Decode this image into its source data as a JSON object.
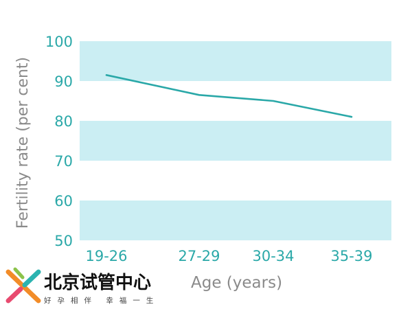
{
  "chart_data": {
    "type": "line",
    "categories": [
      "19-26",
      "27-29",
      "30-34",
      "35-39"
    ],
    "series": [
      {
        "values": [
          91.5,
          86.5,
          85,
          81
        ]
      }
    ],
    "title": "",
    "xlabel": "Age (years)",
    "ylabel": "Fertility rate (per cent)",
    "ylim": [
      50,
      100
    ],
    "yticks": [
      "50",
      "60",
      "70",
      "80",
      "90",
      "100"
    ],
    "band_color": "#cbeef3",
    "line_color": "#2aa8a8",
    "tick_color": "#2aa8a8",
    "label_color": "#8a8a8a"
  },
  "logo": {
    "name": "北京试管中心",
    "slogan": "好孕相伴 幸福一生"
  }
}
